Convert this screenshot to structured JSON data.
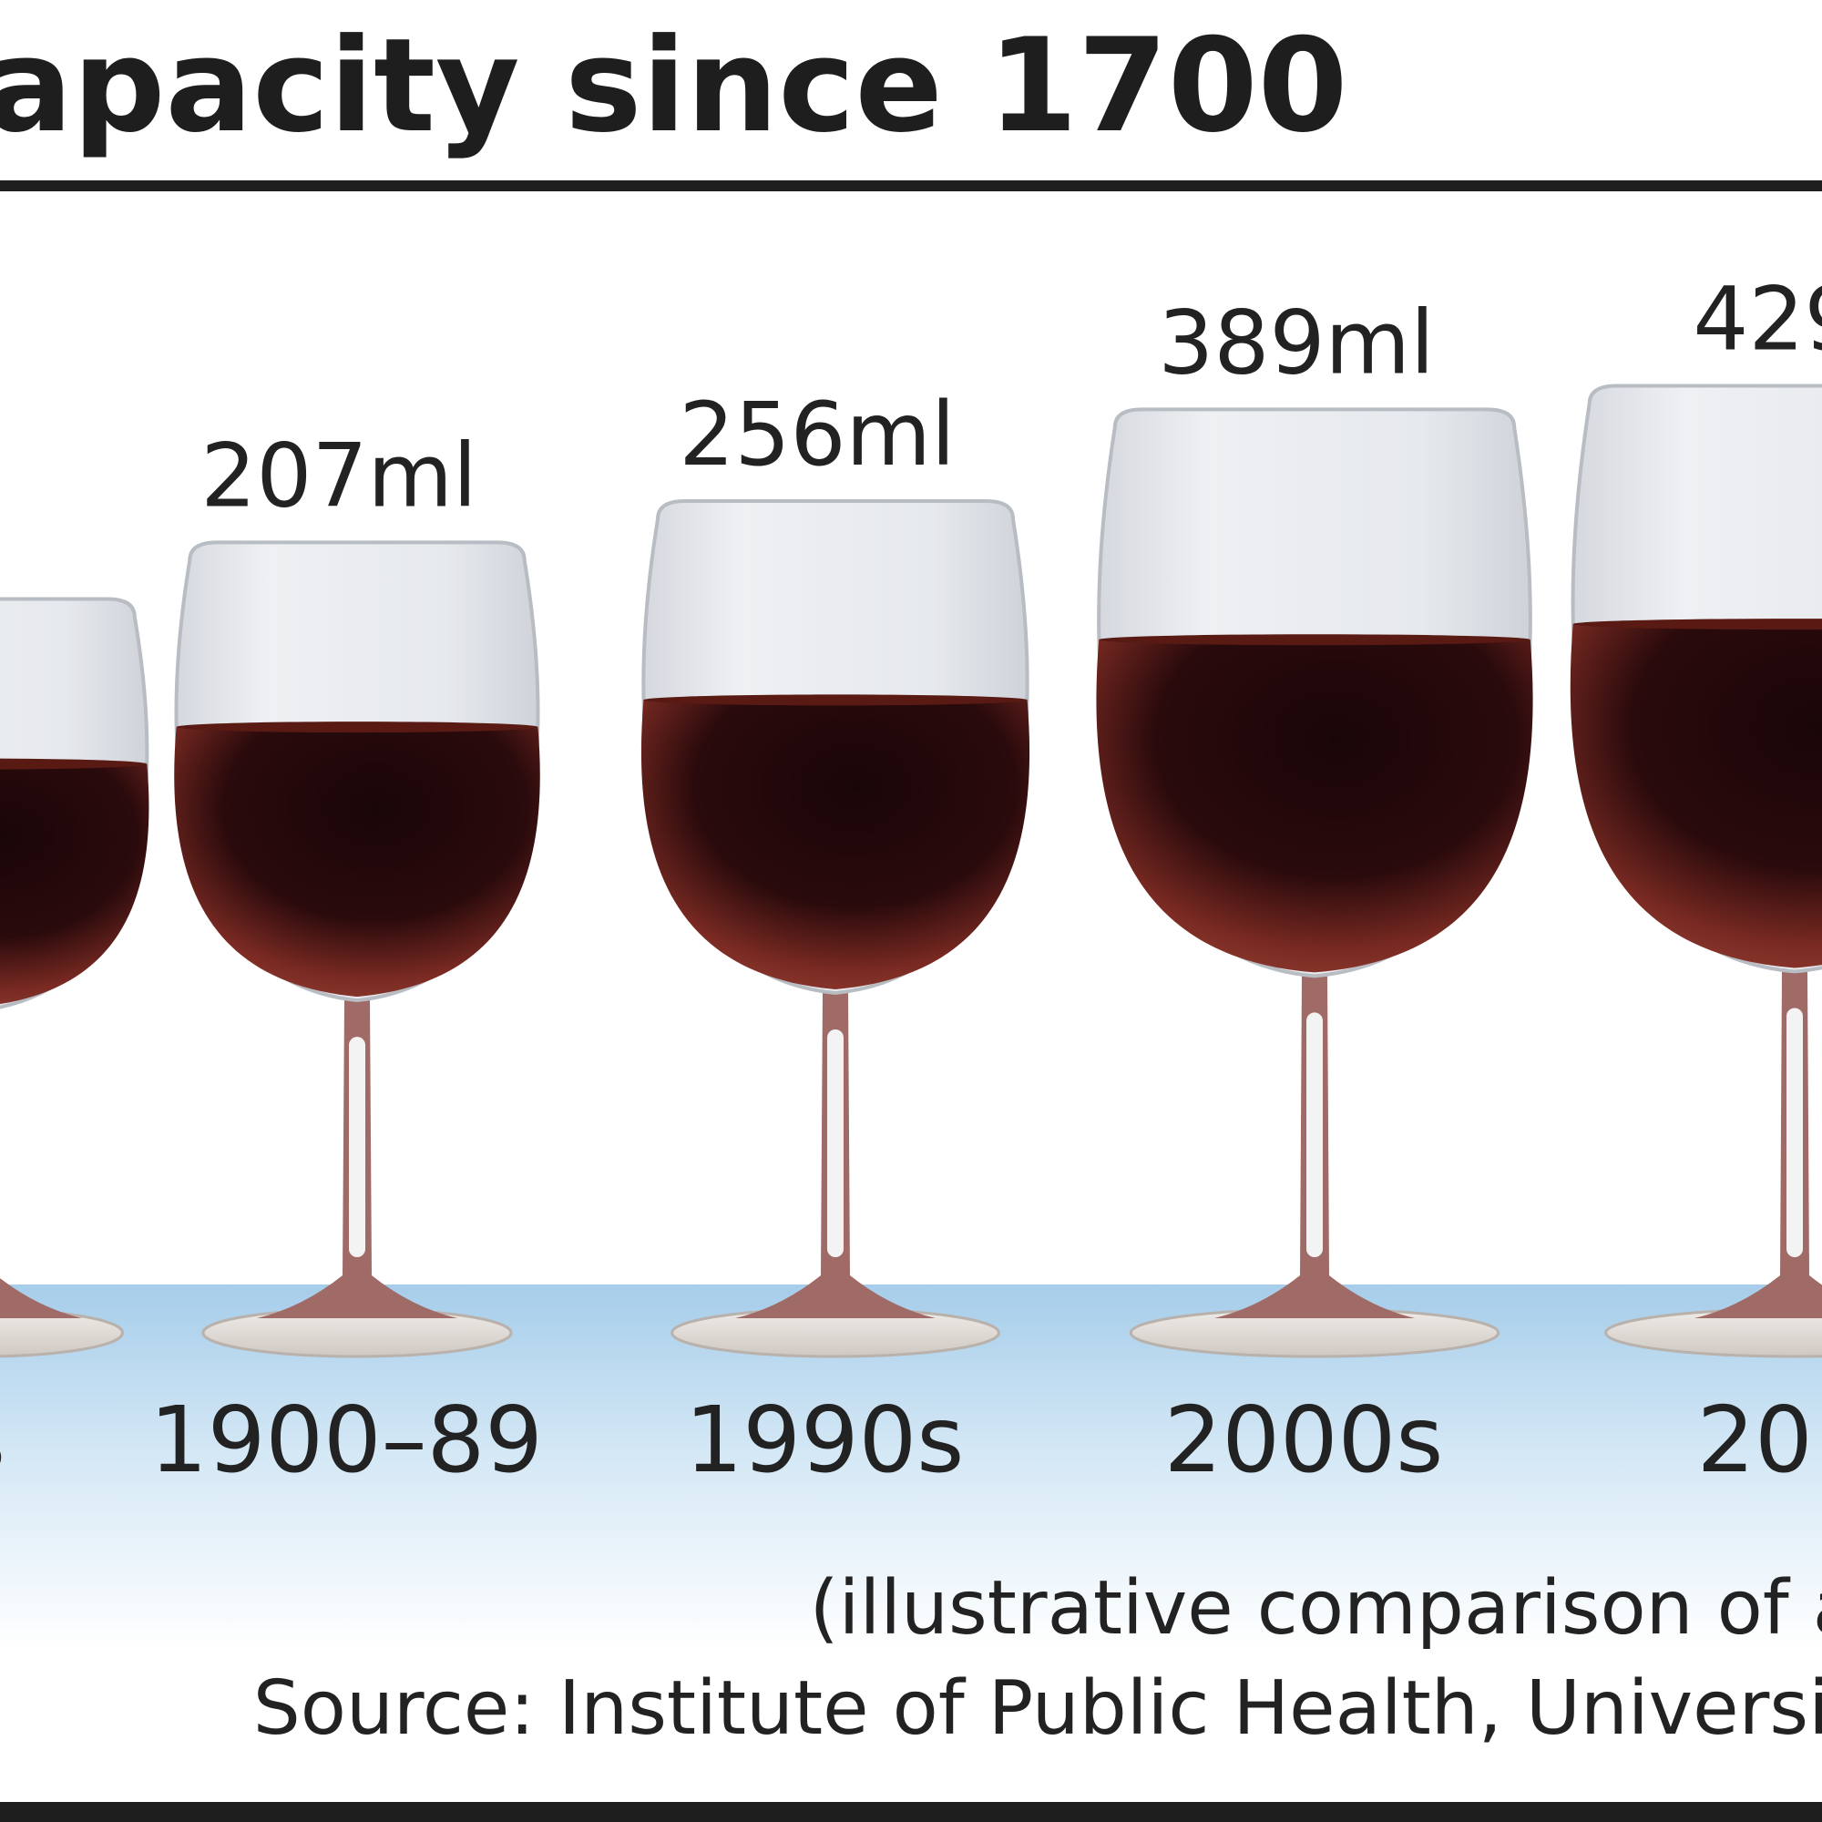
{
  "chart_data": {
    "type": "bar",
    "title": "apacity since 1700",
    "categories": [
      "s",
      "1900–89",
      "1990s",
      "2000s",
      "201"
    ],
    "labels": [
      "l",
      "207ml",
      "256ml",
      "389ml",
      "429"
    ],
    "values": [
      150,
      207,
      256,
      389,
      429
    ],
    "unit": "ml",
    "ylim": [
      0,
      450
    ],
    "legend": "none",
    "grid": false
  },
  "notes": {
    "line1": "(illustrative comparison of a",
    "line2": "Source: Institute of Public Health, Universit"
  },
  "colors": {
    "wine_dark": "#1a0608",
    "wine_mid": "#7a2a22",
    "wine_edge": "#a86f6a",
    "glass": "#e2e5ea",
    "table_blue": "#a9cfe9",
    "text": "#222222"
  }
}
